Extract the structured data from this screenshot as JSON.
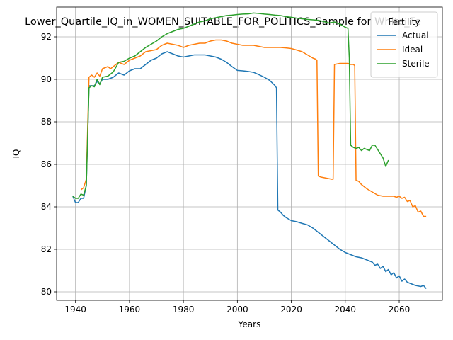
{
  "chart_data": {
    "type": "line",
    "title": "Lower_Quartile_IQ_in_WOMEN_SUITABLE_FOR_POLITICS_Sample for White_Fe",
    "xlabel": "Years",
    "ylabel": "IQ",
    "xlim": [
      1933,
      2076
    ],
    "ylim": [
      79.6,
      93.4
    ],
    "xticks": [
      1940,
      1960,
      1980,
      2000,
      2020,
      2040,
      2060
    ],
    "yticks": [
      80,
      82,
      84,
      86,
      88,
      90,
      92
    ],
    "grid": true,
    "legend": {
      "title": "Fertility",
      "placement": "top-right"
    },
    "series": [
      {
        "name": "Actual",
        "color": "#1f77b4",
        "points": [
          [
            1939,
            84.5
          ],
          [
            1940,
            84.2
          ],
          [
            1941,
            84.2
          ],
          [
            1942,
            84.4
          ],
          [
            1943,
            84.4
          ],
          [
            1944,
            85.0
          ],
          [
            1945,
            89.7
          ],
          [
            1946,
            89.7
          ],
          [
            1947,
            89.7
          ],
          [
            1948,
            89.9
          ],
          [
            1949,
            89.8
          ],
          [
            1950,
            90.0
          ],
          [
            1952,
            90.0
          ],
          [
            1954,
            90.1
          ],
          [
            1956,
            90.3
          ],
          [
            1958,
            90.2
          ],
          [
            1960,
            90.4
          ],
          [
            1962,
            90.5
          ],
          [
            1964,
            90.5
          ],
          [
            1966,
            90.7
          ],
          [
            1968,
            90.9
          ],
          [
            1970,
            91.0
          ],
          [
            1972,
            91.2
          ],
          [
            1974,
            91.3
          ],
          [
            1976,
            91.2
          ],
          [
            1978,
            91.1
          ],
          [
            1980,
            91.05
          ],
          [
            1982,
            91.1
          ],
          [
            1984,
            91.15
          ],
          [
            1986,
            91.15
          ],
          [
            1988,
            91.15
          ],
          [
            1990,
            91.1
          ],
          [
            1992,
            91.05
          ],
          [
            1994,
            90.95
          ],
          [
            1996,
            90.8
          ],
          [
            1998,
            90.6
          ],
          [
            2000,
            90.42
          ],
          [
            2002,
            90.4
          ],
          [
            2004,
            90.37
          ],
          [
            2006,
            90.33
          ],
          [
            2008,
            90.22
          ],
          [
            2010,
            90.1
          ],
          [
            2012,
            89.95
          ],
          [
            2014,
            89.7
          ],
          [
            2014.5,
            89.6
          ],
          [
            2015,
            83.85
          ],
          [
            2016,
            83.75
          ],
          [
            2017,
            83.6
          ],
          [
            2018,
            83.5
          ],
          [
            2020,
            83.35
          ],
          [
            2022,
            83.3
          ],
          [
            2024,
            83.22
          ],
          [
            2026,
            83.15
          ],
          [
            2028,
            83.0
          ],
          [
            2030,
            82.8
          ],
          [
            2032,
            82.6
          ],
          [
            2034,
            82.4
          ],
          [
            2036,
            82.2
          ],
          [
            2038,
            82.0
          ],
          [
            2040,
            81.85
          ],
          [
            2042,
            81.75
          ],
          [
            2044,
            81.65
          ],
          [
            2046,
            81.6
          ],
          [
            2048,
            81.5
          ],
          [
            2050,
            81.4
          ],
          [
            2051,
            81.25
          ],
          [
            2052,
            81.3
          ],
          [
            2053,
            81.1
          ],
          [
            2054,
            81.2
          ],
          [
            2055,
            80.95
          ],
          [
            2056,
            81.05
          ],
          [
            2057,
            80.8
          ],
          [
            2058,
            80.9
          ],
          [
            2059,
            80.65
          ],
          [
            2060,
            80.75
          ],
          [
            2061,
            80.5
          ],
          [
            2062,
            80.6
          ],
          [
            2063,
            80.45
          ],
          [
            2064,
            80.4
          ],
          [
            2066,
            80.3
          ],
          [
            2068,
            80.25
          ],
          [
            2069,
            80.3
          ],
          [
            2070,
            80.15
          ]
        ]
      },
      {
        "name": "Ideal",
        "color": "#ff7f0e",
        "points": [
          [
            1942,
            84.8
          ],
          [
            1943,
            84.9
          ],
          [
            1944,
            85.3
          ],
          [
            1945,
            90.1
          ],
          [
            1946,
            90.2
          ],
          [
            1947,
            90.1
          ],
          [
            1948,
            90.3
          ],
          [
            1949,
            90.15
          ],
          [
            1950,
            90.5
          ],
          [
            1952,
            90.6
          ],
          [
            1953,
            90.5
          ],
          [
            1954,
            90.6
          ],
          [
            1956,
            90.8
          ],
          [
            1958,
            90.7
          ],
          [
            1960,
            90.9
          ],
          [
            1962,
            91.0
          ],
          [
            1964,
            91.1
          ],
          [
            1966,
            91.3
          ],
          [
            1968,
            91.35
          ],
          [
            1970,
            91.4
          ],
          [
            1972,
            91.6
          ],
          [
            1974,
            91.7
          ],
          [
            1976,
            91.65
          ],
          [
            1978,
            91.6
          ],
          [
            1980,
            91.5
          ],
          [
            1982,
            91.6
          ],
          [
            1984,
            91.65
          ],
          [
            1986,
            91.7
          ],
          [
            1988,
            91.7
          ],
          [
            1990,
            91.8
          ],
          [
            1992,
            91.85
          ],
          [
            1994,
            91.85
          ],
          [
            1996,
            91.8
          ],
          [
            1998,
            91.7
          ],
          [
            2000,
            91.65
          ],
          [
            2002,
            91.6
          ],
          [
            2004,
            91.6
          ],
          [
            2006,
            91.6
          ],
          [
            2008,
            91.55
          ],
          [
            2010,
            91.5
          ],
          [
            2012,
            91.5
          ],
          [
            2014,
            91.5
          ],
          [
            2016,
            91.5
          ],
          [
            2018,
            91.48
          ],
          [
            2020,
            91.45
          ],
          [
            2022,
            91.38
          ],
          [
            2024,
            91.3
          ],
          [
            2026,
            91.15
          ],
          [
            2028,
            91.0
          ],
          [
            2029,
            90.95
          ],
          [
            2029.5,
            90.9
          ],
          [
            2030,
            85.45
          ],
          [
            2031,
            85.4
          ],
          [
            2033,
            85.35
          ],
          [
            2035,
            85.3
          ],
          [
            2035.5,
            85.3
          ],
          [
            2036,
            90.7
          ],
          [
            2038,
            90.75
          ],
          [
            2040,
            90.75
          ],
          [
            2041,
            90.75
          ],
          [
            2042,
            90.7
          ],
          [
            2043,
            90.7
          ],
          [
            2043.5,
            90.65
          ],
          [
            2044,
            85.25
          ],
          [
            2045,
            85.2
          ],
          [
            2046,
            85.05
          ],
          [
            2048,
            84.85
          ],
          [
            2050,
            84.7
          ],
          [
            2052,
            84.55
          ],
          [
            2054,
            84.5
          ],
          [
            2056,
            84.5
          ],
          [
            2058,
            84.5
          ],
          [
            2059,
            84.45
          ],
          [
            2060,
            84.5
          ],
          [
            2061,
            84.4
          ],
          [
            2062,
            84.45
          ],
          [
            2063,
            84.25
          ],
          [
            2064,
            84.3
          ],
          [
            2065,
            84.0
          ],
          [
            2066,
            84.05
          ],
          [
            2067,
            83.75
          ],
          [
            2068,
            83.8
          ],
          [
            2069,
            83.55
          ],
          [
            2070,
            83.55
          ]
        ]
      },
      {
        "name": "Sterile",
        "color": "#2ca02c",
        "points": [
          [
            1939,
            84.5
          ],
          [
            1940,
            84.4
          ],
          [
            1941,
            84.4
          ],
          [
            1942,
            84.6
          ],
          [
            1943,
            84.55
          ],
          [
            1944,
            85.0
          ],
          [
            1945,
            89.6
          ],
          [
            1946,
            89.7
          ],
          [
            1947,
            89.65
          ],
          [
            1948,
            90.0
          ],
          [
            1949,
            89.75
          ],
          [
            1950,
            90.1
          ],
          [
            1952,
            90.15
          ],
          [
            1954,
            90.35
          ],
          [
            1956,
            90.8
          ],
          [
            1958,
            90.85
          ],
          [
            1960,
            91.0
          ],
          [
            1962,
            91.1
          ],
          [
            1964,
            91.3
          ],
          [
            1966,
            91.5
          ],
          [
            1968,
            91.65
          ],
          [
            1970,
            91.8
          ],
          [
            1972,
            92.0
          ],
          [
            1974,
            92.15
          ],
          [
            1976,
            92.25
          ],
          [
            1978,
            92.35
          ],
          [
            1980,
            92.4
          ],
          [
            1982,
            92.5
          ],
          [
            1984,
            92.6
          ],
          [
            1986,
            92.7
          ],
          [
            1988,
            92.75
          ],
          [
            1990,
            92.85
          ],
          [
            1992,
            92.9
          ],
          [
            1994,
            92.95
          ],
          [
            1996,
            93.0
          ],
          [
            1998,
            93.02
          ],
          [
            2000,
            93.05
          ],
          [
            2002,
            93.07
          ],
          [
            2004,
            93.08
          ],
          [
            2006,
            93.12
          ],
          [
            2008,
            93.1
          ],
          [
            2010,
            93.07
          ],
          [
            2012,
            93.05
          ],
          [
            2014,
            93.02
          ],
          [
            2016,
            93.0
          ],
          [
            2018,
            92.95
          ],
          [
            2020,
            92.92
          ],
          [
            2022,
            92.88
          ],
          [
            2024,
            92.85
          ],
          [
            2026,
            92.82
          ],
          [
            2028,
            92.8
          ],
          [
            2030,
            92.78
          ],
          [
            2032,
            92.72
          ],
          [
            2034,
            92.65
          ],
          [
            2036,
            92.7
          ],
          [
            2038,
            92.6
          ],
          [
            2040,
            92.45
          ],
          [
            2041,
            92.4
          ],
          [
            2041.5,
            91.0
          ],
          [
            2042,
            86.9
          ],
          [
            2043,
            86.8
          ],
          [
            2044,
            86.75
          ],
          [
            2045,
            86.8
          ],
          [
            2046,
            86.65
          ],
          [
            2047,
            86.75
          ],
          [
            2048,
            86.7
          ],
          [
            2049,
            86.65
          ],
          [
            2050,
            86.9
          ],
          [
            2051,
            86.9
          ],
          [
            2052,
            86.7
          ],
          [
            2053,
            86.5
          ],
          [
            2054,
            86.3
          ],
          [
            2055,
            85.9
          ],
          [
            2056,
            86.2
          ]
        ]
      }
    ]
  }
}
